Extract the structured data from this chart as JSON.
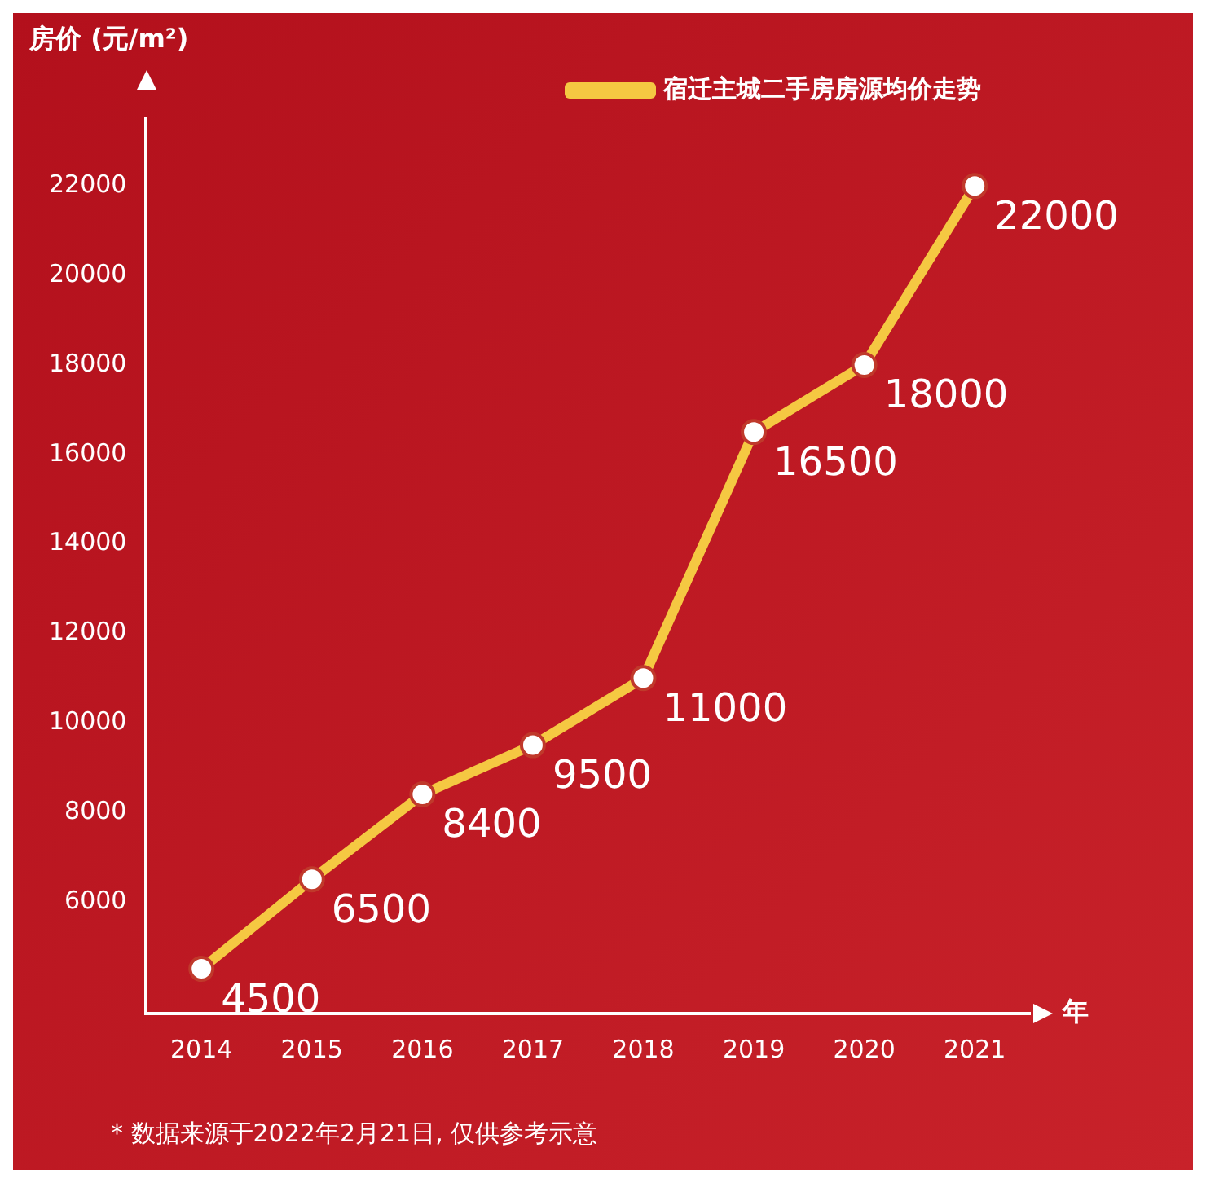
{
  "chart_data": {
    "type": "line",
    "ylabel": "房价 (元/m²)",
    "xlabel": "年",
    "categories": [
      "2014",
      "2015",
      "2016",
      "2017",
      "2018",
      "2019",
      "2020",
      "2021"
    ],
    "series": [
      {
        "name": "宿迁主城二手房房源均价走势",
        "color": "#f5c842",
        "values": [
          4500,
          6500,
          8400,
          9500,
          11000,
          16500,
          18000,
          22000
        ]
      }
    ],
    "ylim": [
      3500,
      23500
    ],
    "yticks": [
      6000,
      8000,
      10000,
      12000,
      14000,
      16000,
      18000,
      20000,
      22000
    ],
    "data_labels": true,
    "marker": "circle",
    "line_style": "solid",
    "legend": "top right",
    "annotations": [
      "* 数据来源于2022年2月21日, 仅供参考示意"
    ]
  }
}
